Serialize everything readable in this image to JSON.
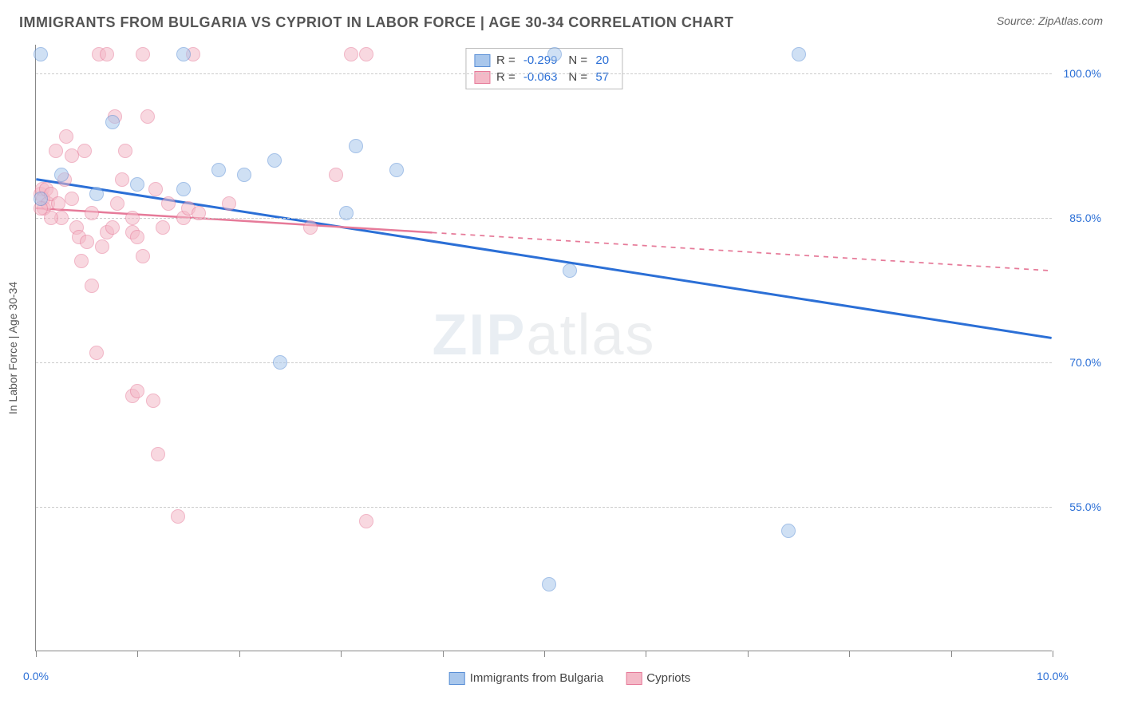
{
  "header": {
    "title": "IMMIGRANTS FROM BULGARIA VS CYPRIOT IN LABOR FORCE | AGE 30-34 CORRELATION CHART",
    "source": "Source: ZipAtlas.com"
  },
  "chart": {
    "type": "scatter",
    "y_axis_title": "In Labor Force | Age 30-34",
    "xlim": [
      0.0,
      10.0
    ],
    "ylim": [
      40.0,
      103.0
    ],
    "x_ticks": [
      0.0,
      1.0,
      2.0,
      3.0,
      4.0,
      5.0,
      6.0,
      7.0,
      8.0,
      9.0,
      10.0
    ],
    "x_tick_labels_visible": {
      "0.0": "0.0%",
      "10.0": "10.0%"
    },
    "y_gridlines": [
      55.0,
      70.0,
      85.0,
      100.0
    ],
    "y_tick_labels": {
      "55.0": "55.0%",
      "70.0": "70.0%",
      "85.0": "85.0%",
      "100.0": "100.0%"
    },
    "x_tick_label_color": "#2b6fd6",
    "y_tick_label_color": "#2b6fd6",
    "grid_color": "#cccccc",
    "axis_color": "#888888",
    "background_color": "#ffffff",
    "marker_radius": 9,
    "marker_stroke_width": 1.5,
    "series": [
      {
        "name": "Immigrants from Bulgaria",
        "fill_color": "#a9c7ec",
        "stroke_color": "#5a8fd6",
        "fill_opacity": 0.55,
        "r": -0.299,
        "n": 20,
        "trend": {
          "x1": 0.0,
          "y1": 89.0,
          "x2": 10.0,
          "y2": 72.5,
          "color": "#2b6fd6",
          "width": 3,
          "dash": "none",
          "solid_until_x": 10.0
        },
        "points": [
          [
            0.05,
            87.0
          ],
          [
            0.05,
            102.0
          ],
          [
            0.25,
            89.5
          ],
          [
            0.6,
            87.5
          ],
          [
            1.0,
            88.5
          ],
          [
            1.45,
            88.0
          ],
          [
            1.45,
            102.0
          ],
          [
            1.8,
            90.0
          ],
          [
            2.05,
            89.5
          ],
          [
            2.35,
            91.0
          ],
          [
            2.4,
            70.0
          ],
          [
            3.05,
            85.5
          ],
          [
            3.15,
            92.5
          ],
          [
            3.55,
            90.0
          ],
          [
            5.05,
            47.0
          ],
          [
            5.1,
            102.0
          ],
          [
            5.25,
            79.5
          ],
          [
            7.4,
            52.5
          ],
          [
            7.5,
            102.0
          ],
          [
            0.75,
            95.0
          ]
        ]
      },
      {
        "name": "Cypriots",
        "fill_color": "#f4b9c7",
        "stroke_color": "#e67a99",
        "fill_opacity": 0.55,
        "r": -0.063,
        "n": 57,
        "trend": {
          "x1": 0.0,
          "y1": 86.0,
          "x2": 10.0,
          "y2": 79.5,
          "color": "#e67a99",
          "width": 2.5,
          "dash": "none",
          "solid_until_x": 3.9,
          "dash_after": "6,6"
        },
        "points": [
          [
            0.05,
            87.5
          ],
          [
            0.06,
            88.0
          ],
          [
            0.07,
            87.0
          ],
          [
            0.08,
            86.0
          ],
          [
            0.1,
            88.0
          ],
          [
            0.12,
            86.5
          ],
          [
            0.15,
            87.5
          ],
          [
            0.2,
            92.0
          ],
          [
            0.22,
            86.5
          ],
          [
            0.25,
            85.0
          ],
          [
            0.28,
            89.0
          ],
          [
            0.3,
            93.5
          ],
          [
            0.35,
            91.5
          ],
          [
            0.4,
            84.0
          ],
          [
            0.42,
            83.0
          ],
          [
            0.45,
            80.5
          ],
          [
            0.48,
            92.0
          ],
          [
            0.5,
            82.5
          ],
          [
            0.55,
            78.0
          ],
          [
            0.6,
            71.0
          ],
          [
            0.62,
            102.0
          ],
          [
            0.65,
            82.0
          ],
          [
            0.7,
            83.5
          ],
          [
            0.7,
            102.0
          ],
          [
            0.78,
            95.5
          ],
          [
            0.8,
            86.5
          ],
          [
            0.85,
            89.0
          ],
          [
            0.88,
            92.0
          ],
          [
            0.95,
            83.5
          ],
          [
            0.95,
            66.5
          ],
          [
            1.0,
            67.0
          ],
          [
            1.0,
            83.0
          ],
          [
            1.05,
            81.0
          ],
          [
            1.05,
            102.0
          ],
          [
            1.1,
            95.5
          ],
          [
            1.15,
            66.0
          ],
          [
            1.18,
            88.0
          ],
          [
            1.2,
            60.5
          ],
          [
            1.25,
            84.0
          ],
          [
            1.3,
            86.5
          ],
          [
            1.4,
            54.0
          ],
          [
            1.45,
            85.0
          ],
          [
            1.5,
            86.0
          ],
          [
            1.55,
            102.0
          ],
          [
            1.6,
            85.5
          ],
          [
            1.9,
            86.5
          ],
          [
            2.7,
            84.0
          ],
          [
            2.95,
            89.5
          ],
          [
            3.1,
            102.0
          ],
          [
            3.25,
            102.0
          ],
          [
            3.25,
            53.5
          ],
          [
            0.05,
            86.0
          ],
          [
            0.15,
            85.0
          ],
          [
            0.35,
            87.0
          ],
          [
            0.55,
            85.5
          ],
          [
            0.75,
            84.0
          ],
          [
            0.95,
            85.0
          ]
        ]
      }
    ],
    "legend_top": [
      {
        "swatch_fill": "#a9c7ec",
        "swatch_stroke": "#5a8fd6",
        "r_label": "R =",
        "r_value": "-0.299",
        "n_label": "N =",
        "n_value": "20"
      },
      {
        "swatch_fill": "#f4b9c7",
        "swatch_stroke": "#e67a99",
        "r_label": "R =",
        "r_value": "-0.063",
        "n_label": "N =",
        "n_value": "57"
      }
    ],
    "legend_bottom": [
      {
        "swatch_fill": "#a9c7ec",
        "swatch_stroke": "#5a8fd6",
        "label": "Immigrants from Bulgaria"
      },
      {
        "swatch_fill": "#f4b9c7",
        "swatch_stroke": "#e67a99",
        "label": "Cypriots"
      }
    ]
  },
  "watermark": {
    "zip": "ZIP",
    "atlas": "atlas",
    "color_zip": "#8aa7c2",
    "color_atlas": "#9aa6ae"
  }
}
